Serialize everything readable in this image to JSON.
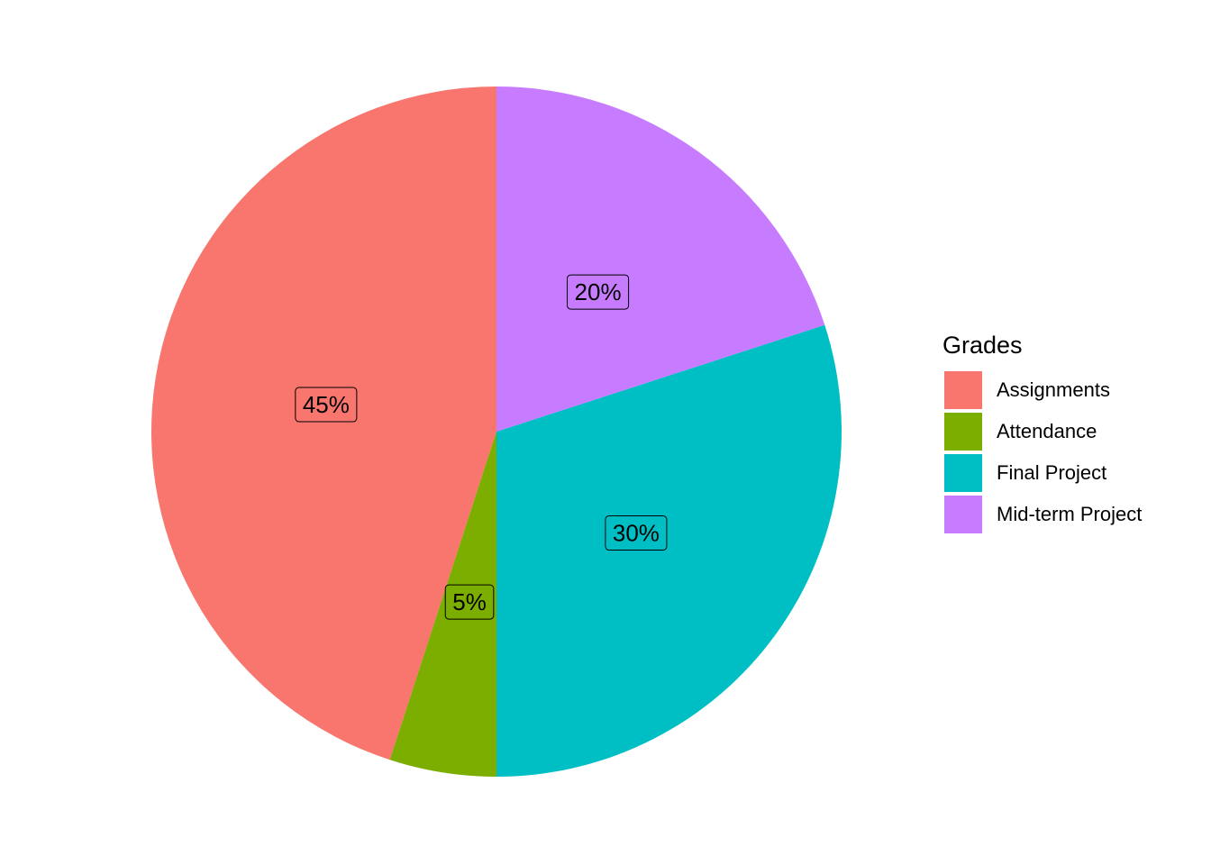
{
  "chart_data": {
    "type": "pie",
    "categories": [
      "Assignments",
      "Attendance",
      "Final Project",
      "Mid-term Project"
    ],
    "values": [
      45,
      5,
      30,
      20
    ],
    "labels": [
      "45%",
      "5%",
      "30%",
      "20%"
    ],
    "colors": [
      "#F8766D",
      "#7CAE00",
      "#00BFC4",
      "#C77CFF"
    ],
    "legend_title": "Grades",
    "legend_position": "right",
    "direction": "counterclockwise from top"
  }
}
